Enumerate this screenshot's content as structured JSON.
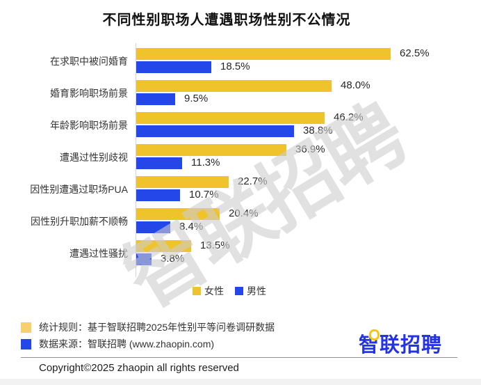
{
  "title": "不同性别职场人遭遇职场性别不公情况",
  "watermark": "智联招聘",
  "chart_data": {
    "type": "bar",
    "orientation": "horizontal",
    "title": "不同性别职场人遭遇职场性别不公情况",
    "categories": [
      "在求职中被问婚育",
      "婚育影响职场前景",
      "年龄影响职场前景",
      "遭遇过性别歧视",
      "因性别遭遇过职场PUA",
      "因性别升职加薪不顺畅",
      "遭遇过性骚扰"
    ],
    "series": [
      {
        "name": "女性",
        "color": "#EFC32B",
        "values": [
          62.5,
          48.0,
          46.2,
          36.9,
          22.7,
          20.4,
          13.5
        ]
      },
      {
        "name": "男性",
        "color": "#2447E9",
        "values": [
          18.5,
          9.5,
          38.8,
          11.3,
          10.7,
          8.4,
          3.8
        ]
      }
    ],
    "value_suffix": "%",
    "xlim": [
      0,
      65
    ],
    "grid": false,
    "legend_position": "bottom",
    "value_labels": [
      "62.5%",
      "18.5%",
      "48.0%",
      "9.5%",
      "46.2%",
      "38.8%",
      "36.9%",
      "11.3%",
      "22.7%",
      "10.7%",
      "20.4%",
      "8.4%",
      "13.5%",
      "3.8%"
    ]
  },
  "legend": {
    "female_label": "女性",
    "male_label": "男性"
  },
  "notes": [
    {
      "swatch_color": "#F8D06B",
      "text": "统计规则：基于智联招聘2025年性别平等问卷调研数据"
    },
    {
      "swatch_color": "#2447E9",
      "text": "数据来源：智联招聘 (www.zhaopin.com)"
    }
  ],
  "logo_text": "智联招聘",
  "copyright": "Copyright©2025 zhaopin all rights reserved"
}
